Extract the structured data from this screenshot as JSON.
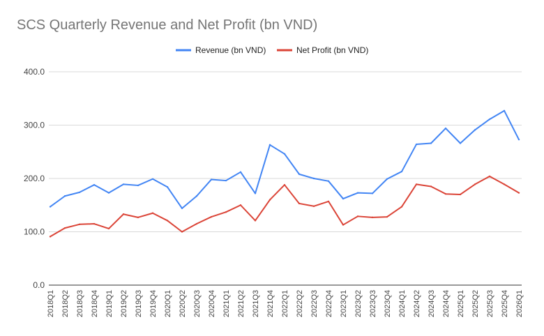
{
  "chart_data": {
    "type": "line",
    "title": "SCS Quarterly Revenue and Net Profit (bn VND)",
    "xlabel": "",
    "ylabel": "",
    "ylim": [
      0,
      400
    ],
    "yticks": [
      "0.0",
      "100.0",
      "200.0",
      "300.0",
      "400.0"
    ],
    "ytick_values": [
      0,
      100,
      200,
      300,
      400
    ],
    "grid": true,
    "legend_position": "top",
    "categories": [
      "2018Q1",
      "2018Q2",
      "2018Q3",
      "2018Q4",
      "2019Q1",
      "2019Q2",
      "2019Q3",
      "2019Q4",
      "2020Q1",
      "2020Q2",
      "2020Q3",
      "2020Q4",
      "2021Q1",
      "2021Q2",
      "2021Q3",
      "2021Q4",
      "2022Q1",
      "2022Q2",
      "2022Q3",
      "2022Q4",
      "2023Q1",
      "2023Q2",
      "2023Q3",
      "2023Q4",
      "2024Q1",
      "2024Q2",
      "2024Q3",
      "2024Q4",
      "2025Q1",
      "2025Q2",
      "2025Q3",
      "2025Q4",
      "2026Q1"
    ],
    "series": [
      {
        "name": "Revenue (bn VND)",
        "color": "#4285f4",
        "values": [
          147,
          167,
          174,
          188,
          173,
          189,
          187,
          199,
          184,
          144,
          167,
          198,
          196,
          212,
          172,
          263,
          246,
          208,
          200,
          195,
          162,
          173,
          172,
          199,
          213,
          264,
          266,
          294,
          266,
          291,
          311,
          327,
          273
        ]
      },
      {
        "name": "Net Profit (bn VND)",
        "color": "#db4437",
        "values": [
          91,
          107,
          114,
          115,
          106,
          133,
          127,
          135,
          121,
          100,
          115,
          128,
          137,
          150,
          121,
          160,
          188,
          153,
          148,
          157,
          113,
          129,
          127,
          128,
          147,
          189,
          185,
          171,
          170,
          189,
          204,
          189,
          173
        ]
      }
    ]
  }
}
